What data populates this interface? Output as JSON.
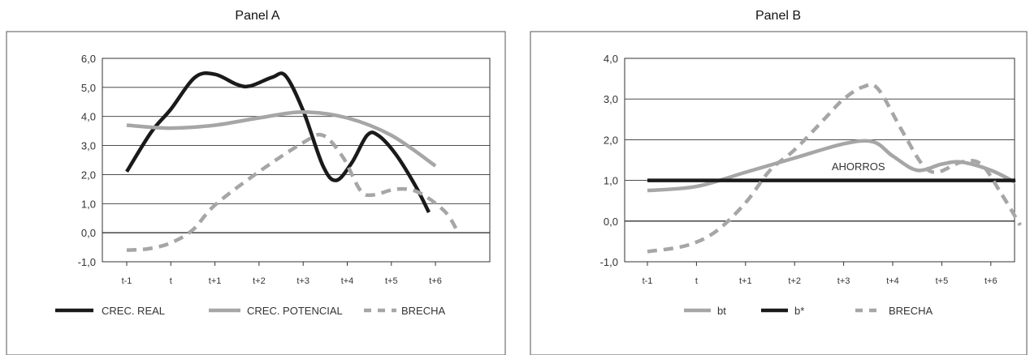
{
  "colors": {
    "dark": "#1a1a1a",
    "grey": "#a6a6a6",
    "frame": "#555555",
    "grid": "#333333",
    "text": "#333333"
  },
  "chart_data": [
    {
      "type": "line",
      "title": "Panel A",
      "categories": [
        "t-1",
        "t",
        "t+1",
        "t+2",
        "t+3",
        "t+4",
        "t+5",
        "t+6"
      ],
      "yticks": [
        "6,0",
        "5,0",
        "4,0",
        "3,0",
        "2,0",
        "1,0",
        "0,0",
        "-1,0"
      ],
      "ylim": [
        -1,
        6
      ],
      "grid": true,
      "legend_position": "bottom",
      "series": [
        {
          "name": "CREC. REAL",
          "style": "solid-dark",
          "points": [
            [
              0,
              2.1
            ],
            [
              0.55,
              3.45
            ],
            [
              1.0,
              4.25
            ],
            [
              1.55,
              5.35
            ],
            [
              2.0,
              5.45
            ],
            [
              2.5,
              5.1
            ],
            [
              2.8,
              5.05
            ],
            [
              3.3,
              5.35
            ],
            [
              3.6,
              5.4
            ],
            [
              4.0,
              4.2
            ],
            [
              4.45,
              2.3
            ],
            [
              4.75,
              1.8
            ],
            [
              5.1,
              2.4
            ],
            [
              5.45,
              3.35
            ],
            [
              5.7,
              3.35
            ],
            [
              6.1,
              2.7
            ],
            [
              6.55,
              1.6
            ],
            [
              6.85,
              0.7
            ]
          ]
        },
        {
          "name": "CREC. POTENCIAL",
          "style": "solid-grey",
          "points": [
            [
              0,
              3.7
            ],
            [
              1.0,
              3.6
            ],
            [
              2.0,
              3.7
            ],
            [
              3.0,
              3.95
            ],
            [
              4.0,
              4.15
            ],
            [
              5.0,
              3.95
            ],
            [
              6.0,
              3.35
            ],
            [
              7.0,
              2.3
            ]
          ]
        },
        {
          "name": "BRECHA",
          "style": "dashed-grey",
          "points": [
            [
              0,
              -0.6
            ],
            [
              0.5,
              -0.55
            ],
            [
              1.0,
              -0.35
            ],
            [
              1.5,
              0.1
            ],
            [
              2.0,
              0.95
            ],
            [
              3.0,
              2.1
            ],
            [
              4.0,
              3.1
            ],
            [
              4.45,
              3.35
            ],
            [
              4.9,
              2.6
            ],
            [
              5.3,
              1.45
            ],
            [
              5.6,
              1.3
            ],
            [
              6.1,
              1.5
            ],
            [
              6.6,
              1.4
            ],
            [
              7.2,
              0.75
            ],
            [
              7.5,
              0.05
            ]
          ]
        }
      ]
    },
    {
      "type": "line",
      "title": "Panel B",
      "categories": [
        "t-1",
        "t",
        "t+1",
        "t+2",
        "t+3",
        "t+4",
        "t+5",
        "t+6"
      ],
      "yticks": [
        "4,0",
        "3,0",
        "2,0",
        "1,0",
        "0,0",
        "-1,0"
      ],
      "ylim": [
        -1,
        4
      ],
      "grid": true,
      "legend_position": "bottom",
      "annotation": {
        "text": "AHORROS",
        "x": 4.3,
        "y": 1.25
      },
      "series": [
        {
          "name": "bt",
          "style": "solid-grey",
          "points": [
            [
              0,
              0.75
            ],
            [
              1.0,
              0.85
            ],
            [
              2.0,
              1.2
            ],
            [
              3.0,
              1.55
            ],
            [
              4.0,
              1.9
            ],
            [
              4.6,
              1.95
            ],
            [
              5.0,
              1.6
            ],
            [
              5.5,
              1.25
            ],
            [
              6.0,
              1.4
            ],
            [
              6.4,
              1.45
            ],
            [
              7.0,
              1.25
            ],
            [
              7.5,
              0.95
            ]
          ]
        },
        {
          "name": "b*",
          "style": "solid-dark",
          "points": [
            [
              0,
              1.0
            ],
            [
              7.5,
              1.0
            ]
          ]
        },
        {
          "name": "BRECHA",
          "style": "dashed-grey",
          "points": [
            [
              0,
              -0.75
            ],
            [
              0.8,
              -0.6
            ],
            [
              1.4,
              -0.25
            ],
            [
              2.0,
              0.45
            ],
            [
              2.5,
              1.25
            ],
            [
              3.0,
              1.75
            ],
            [
              3.6,
              2.5
            ],
            [
              4.0,
              3.0
            ],
            [
              4.4,
              3.3
            ],
            [
              4.7,
              3.25
            ],
            [
              5.2,
              2.2
            ],
            [
              5.6,
              1.4
            ],
            [
              5.9,
              1.2
            ],
            [
              6.4,
              1.45
            ],
            [
              6.8,
              1.4
            ],
            [
              7.2,
              0.7
            ],
            [
              7.6,
              -0.1
            ]
          ]
        }
      ]
    }
  ]
}
